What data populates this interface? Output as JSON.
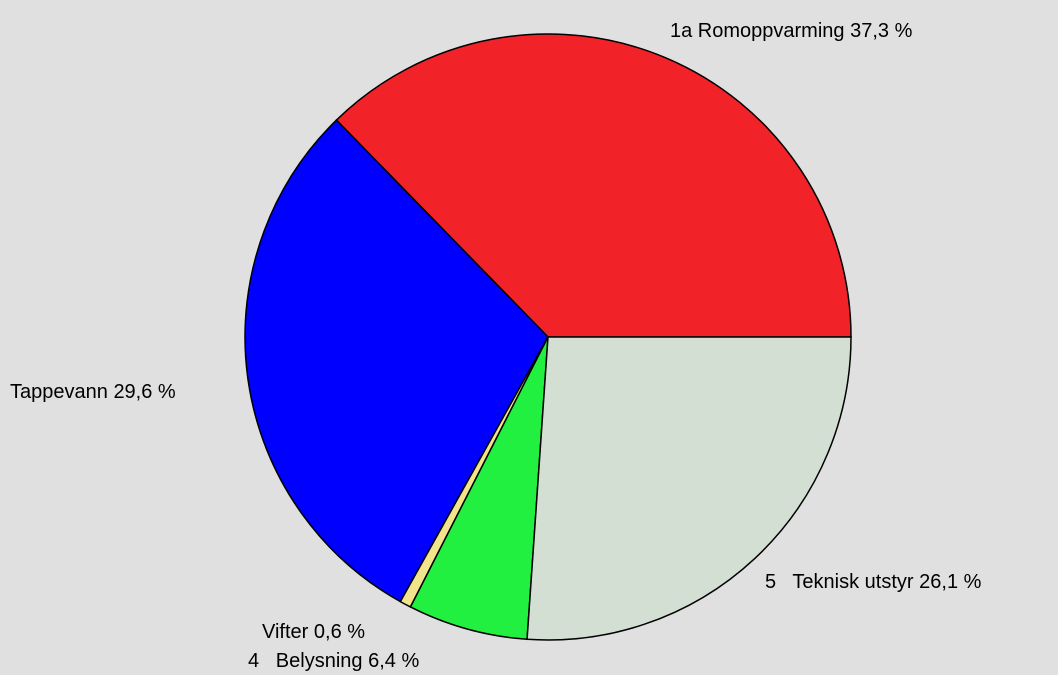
{
  "chart_data": {
    "type": "pie",
    "categories": [
      "1a Romoppvarming",
      "Tappevann",
      "Vifter",
      "4   Belysning",
      "5   Teknisk utstyr"
    ],
    "values": [
      37.3,
      29.6,
      0.6,
      6.4,
      26.1
    ],
    "value_labels": [
      "37,3 %",
      "29,6 %",
      "0,6 %",
      "6,4 %",
      "26,1 %"
    ],
    "colors": [
      "#f22229",
      "#0000ff",
      "#f2e48c",
      "#22f040",
      "#d3dfd3"
    ]
  }
}
